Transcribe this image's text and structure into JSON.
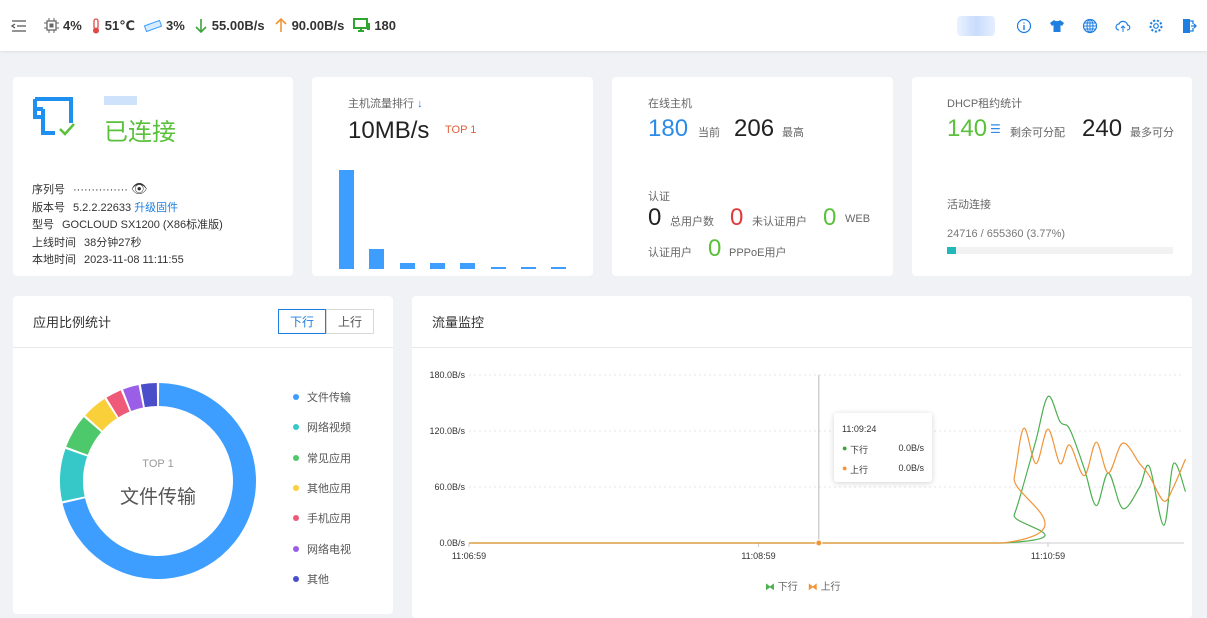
{
  "topbar": {
    "cpu": "4%",
    "temp": "51℃",
    "mem": "3%",
    "down": "55.00B/s",
    "up": "90.00B/s",
    "hosts": "180",
    "icons": [
      "menu-fold-icon",
      "cpu-icon",
      "thermometer-icon",
      "memory-icon",
      "arrow-down-icon",
      "arrow-up-icon",
      "monitor-icon",
      "info-icon",
      "theme-shirt-icon",
      "language-globe-icon",
      "upload-cloud-icon",
      "settings-gear-icon",
      "logout-icon"
    ]
  },
  "device": {
    "status": "已连接",
    "serial_label": "序列号",
    "serial_value": "···············",
    "version_label": "版本号",
    "version_value": "5.2.2.22633",
    "upgrade_link": "升级固件",
    "model_label": "型号",
    "model_value": "GOCLOUD SX1200 (X86标准版)",
    "uptime_label": "上线时间",
    "uptime_value": "38分钟27秒",
    "localtime_label": "本地时间",
    "localtime_value": "2023-11-08 11:11:55"
  },
  "host_rank": {
    "title": "主机流量排行",
    "value": "10MB/s",
    "badge": "TOP 1",
    "bars": [
      10,
      2,
      0.6,
      0.6,
      0.6,
      0.25,
      0.2,
      0.2
    ]
  },
  "online": {
    "title": "在线主机",
    "current": "180",
    "current_label": "当前",
    "max": "206",
    "max_label": "最高",
    "auth_title": "认证",
    "total": "0",
    "total_label": "总用户数",
    "unauth": "0",
    "unauth_label": "未认证用户",
    "web": "0",
    "web_label": "WEB",
    "authed_label": "认证用户",
    "pppoe": "0",
    "pppoe_label": "PPPoE用户"
  },
  "dhcp": {
    "title": "DHCP租约统计",
    "remain": "140",
    "remain_label": "剩余可分配",
    "max": "240",
    "max_label": "最多可分",
    "conn_title": "活动连接",
    "conn_text": "24716 / 655360 (3.77%)",
    "conn_percent": 3.77
  },
  "app_ratio": {
    "title": "应用比例统计",
    "tab_down": "下行",
    "tab_up": "上行",
    "center_top": "TOP 1",
    "center_label": "文件传输",
    "chart_data": {
      "type": "pie",
      "categories": [
        "文件传输",
        "网络视频",
        "常见应用",
        "其他应用",
        "手机应用",
        "网络电视",
        "其他"
      ],
      "values": [
        71.5,
        9,
        6,
        4.5,
        3,
        3,
        3
      ],
      "colors": [
        "#3d9eff",
        "#36c8c8",
        "#4dc96b",
        "#f9cf3a",
        "#ef5a78",
        "#9a5fe6",
        "#4a4fc9"
      ]
    }
  },
  "traffic": {
    "title": "流量监控",
    "chart_data": {
      "type": "line",
      "yticks": [
        "0.0B/s",
        "60.0B/s",
        "120.0B/s",
        "180.0B/s"
      ],
      "ylim": [
        0,
        180
      ],
      "xticks": [
        "11:06:59",
        "11:08:59",
        "11:10:59"
      ],
      "x": [
        "11:06:59",
        "11:10:40",
        "11:10:45",
        "11:10:49",
        "11:10:54",
        "11:10:59",
        "11:11:04",
        "11:11:08",
        "11:11:14",
        "11:11:19",
        "11:11:24",
        "11:11:30",
        "11:11:37",
        "11:11:41",
        "11:11:47",
        "11:11:51",
        "11:11:56"
      ],
      "series": [
        {
          "name": "下行",
          "color": "#4caf50",
          "values": [
            0,
            0,
            30,
            64,
            110,
            157,
            130,
            122,
            80,
            40,
            75,
            37,
            60,
            82,
            19,
            85,
            55
          ]
        },
        {
          "name": "上行",
          "color": "#f0953a",
          "values": [
            0,
            0,
            70,
            123,
            85,
            122,
            85,
            105,
            72,
            108,
            75,
            107,
            85,
            72,
            45,
            60,
            90
          ]
        }
      ],
      "tooltip": {
        "time": "11:09:24",
        "rows": [
          {
            "name": "下行",
            "value": "0.0B/s"
          },
          {
            "name": "上行",
            "value": "0.0B/s"
          }
        ]
      }
    }
  }
}
